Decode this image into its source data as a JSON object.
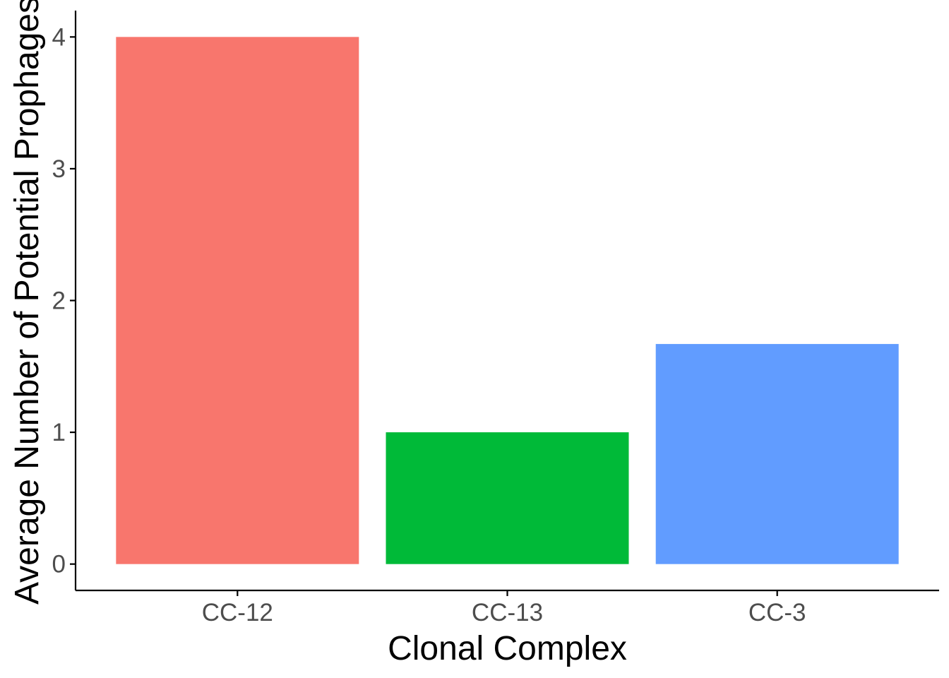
{
  "chart_data": {
    "type": "bar",
    "categories": [
      "CC-12",
      "CC-13",
      "CC-3"
    ],
    "values": [
      4,
      1,
      1.67
    ],
    "colors": [
      "#F8766D",
      "#00BA38",
      "#619CFF"
    ],
    "xlabel": "Clonal Complex",
    "ylabel": "Average Number of Potential Prophages",
    "ylim": [
      -0.2,
      4.2
    ],
    "yticks": [
      0,
      1,
      2,
      3,
      4
    ],
    "ytick_labels": [
      "0",
      "1",
      "2",
      "3",
      "4"
    ],
    "grid": false,
    "legend": "none"
  }
}
